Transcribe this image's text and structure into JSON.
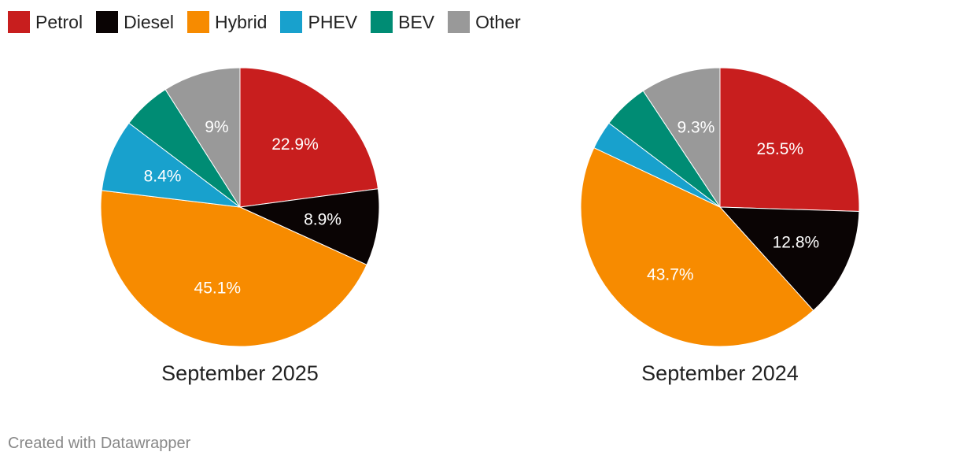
{
  "legend": [
    {
      "name": "Petrol",
      "color": "#c81e1e"
    },
    {
      "name": "Diesel",
      "color": "#0a0404"
    },
    {
      "name": "Hybrid",
      "color": "#f78b00"
    },
    {
      "name": "PHEV",
      "color": "#18a1cd"
    },
    {
      "name": "BEV",
      "color": "#008c74"
    },
    {
      "name": "Other",
      "color": "#999999"
    }
  ],
  "chart_data": [
    {
      "type": "pie",
      "title": "September 2025",
      "categories": [
        "Petrol",
        "Diesel",
        "Hybrid",
        "PHEV",
        "BEV",
        "Other"
      ],
      "values": [
        22.9,
        8.9,
        45.1,
        8.4,
        5.7,
        9.0
      ],
      "labels": [
        "22.9%",
        "8.9%",
        "45.1%",
        "8.4%",
        "",
        "9%"
      ],
      "colors": [
        "#c81e1e",
        "#0a0404",
        "#f78b00",
        "#18a1cd",
        "#008c74",
        "#999999"
      ]
    },
    {
      "type": "pie",
      "title": "September 2024",
      "categories": [
        "Petrol",
        "Diesel",
        "Hybrid",
        "PHEV",
        "BEV",
        "Other"
      ],
      "values": [
        25.5,
        12.8,
        43.7,
        3.3,
        5.4,
        9.3
      ],
      "labels": [
        "25.5%",
        "12.8%",
        "43.7%",
        "",
        "",
        "9.3%"
      ],
      "colors": [
        "#c81e1e",
        "#0a0404",
        "#f78b00",
        "#18a1cd",
        "#008c74",
        "#999999"
      ]
    }
  ],
  "footer": {
    "credit": "Created with Datawrapper"
  }
}
